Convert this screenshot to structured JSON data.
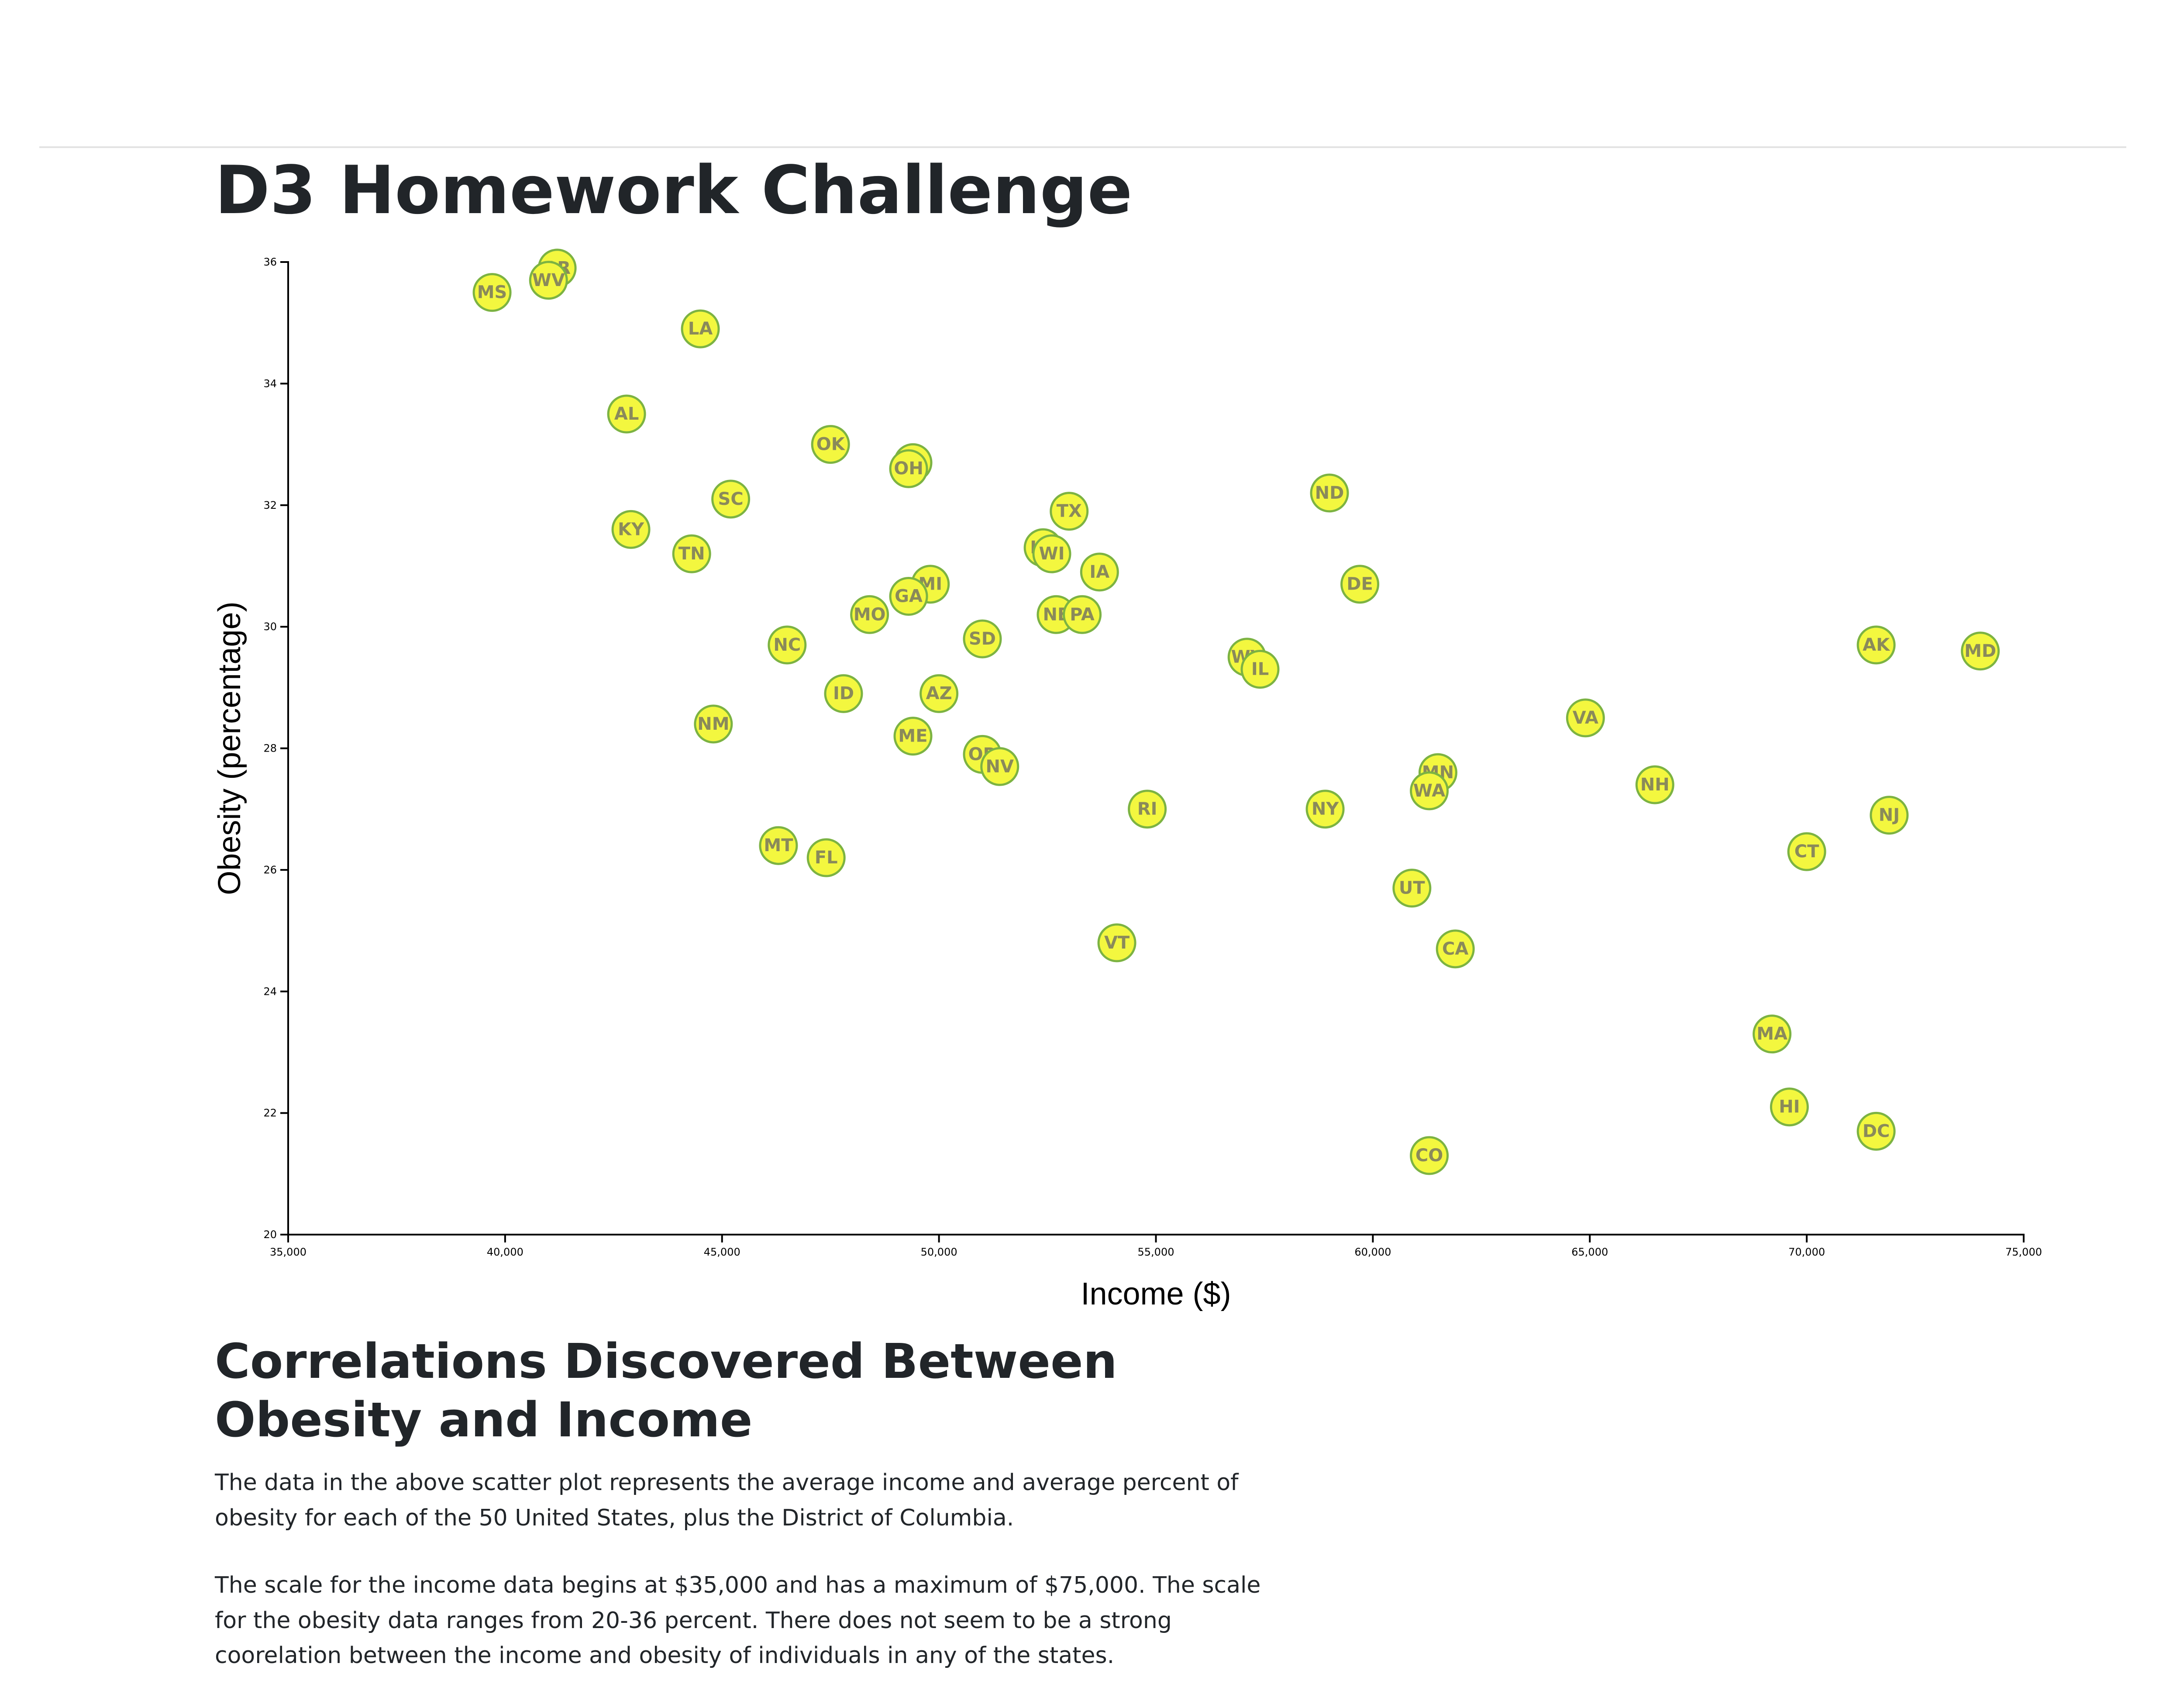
{
  "page": {
    "title": "D3 Homework Challenge",
    "section_title": "Correlations Discovered Between Obesity and Income",
    "paragraphs": [
      "The data in the above scatter plot represents the average income and average percent of obesity for each of the 50 United States, plus the District of Columbia.",
      "The scale for the income data begins at $35,000 and has a maximum of $75,000. The scale for the obesity data ranges from 20-36 percent. There does not seem to be a strong coorelation between the income and obesity of individuals in any of the states."
    ]
  },
  "colors": {
    "marker_fill": "#f3f73f",
    "marker_stroke": "#7cb342",
    "label": "#8a8a5a"
  },
  "chart_data": {
    "type": "scatter",
    "title": "",
    "xlabel": "Income ($)",
    "ylabel": "Obesity (percentage)",
    "xlim": [
      35000,
      75000
    ],
    "ylim": [
      20,
      36
    ],
    "x_ticks": [
      35000,
      40000,
      45000,
      50000,
      55000,
      60000,
      65000,
      70000,
      75000
    ],
    "x_tick_labels": [
      "35,000",
      "40,000",
      "45,000",
      "50,000",
      "55,000",
      "60,000",
      "65,000",
      "70,000",
      "75,000"
    ],
    "y_ticks": [
      20,
      22,
      24,
      26,
      28,
      30,
      32,
      34,
      36
    ],
    "y_tick_labels": [
      "20",
      "22",
      "24",
      "26",
      "28",
      "30",
      "32",
      "34",
      "36"
    ],
    "grid": false,
    "points": [
      {
        "label": "AR",
        "x": 41200,
        "y": 35.9
      },
      {
        "label": "WV",
        "x": 41000,
        "y": 35.7
      },
      {
        "label": "MS",
        "x": 39700,
        "y": 35.5
      },
      {
        "label": "LA",
        "x": 44500,
        "y": 34.9
      },
      {
        "label": "AL",
        "x": 42800,
        "y": 33.5
      },
      {
        "label": "OK",
        "x": 47500,
        "y": 33.0
      },
      {
        "label": "IN",
        "x": 49400,
        "y": 32.7
      },
      {
        "label": "OH",
        "x": 49300,
        "y": 32.6
      },
      {
        "label": "SC",
        "x": 45200,
        "y": 32.1
      },
      {
        "label": "ND",
        "x": 59000,
        "y": 32.2
      },
      {
        "label": "TX",
        "x": 53000,
        "y": 31.9
      },
      {
        "label": "KY",
        "x": 42900,
        "y": 31.6
      },
      {
        "label": "KS",
        "x": 52400,
        "y": 31.3
      },
      {
        "label": "WI",
        "x": 52600,
        "y": 31.2
      },
      {
        "label": "TN",
        "x": 44300,
        "y": 31.2
      },
      {
        "label": "IA",
        "x": 53700,
        "y": 30.9
      },
      {
        "label": "DE",
        "x": 59700,
        "y": 30.7
      },
      {
        "label": "MI",
        "x": 49800,
        "y": 30.7
      },
      {
        "label": "GA",
        "x": 49300,
        "y": 30.5
      },
      {
        "label": "MO",
        "x": 48400,
        "y": 30.2
      },
      {
        "label": "NE",
        "x": 52700,
        "y": 30.2
      },
      {
        "label": "PA",
        "x": 53300,
        "y": 30.2
      },
      {
        "label": "SD",
        "x": 51000,
        "y": 29.8
      },
      {
        "label": "NC",
        "x": 46500,
        "y": 29.7
      },
      {
        "label": "AK",
        "x": 71600,
        "y": 29.7
      },
      {
        "label": "MD",
        "x": 74000,
        "y": 29.6
      },
      {
        "label": "WY",
        "x": 57100,
        "y": 29.5
      },
      {
        "label": "IL",
        "x": 57400,
        "y": 29.3
      },
      {
        "label": "ID",
        "x": 47800,
        "y": 28.9
      },
      {
        "label": "AZ",
        "x": 50000,
        "y": 28.9
      },
      {
        "label": "VA",
        "x": 64900,
        "y": 28.5
      },
      {
        "label": "NM",
        "x": 44800,
        "y": 28.4
      },
      {
        "label": "ME",
        "x": 49400,
        "y": 28.2
      },
      {
        "label": "OR",
        "x": 51000,
        "y": 27.9
      },
      {
        "label": "NV",
        "x": 51400,
        "y": 27.7
      },
      {
        "label": "MN",
        "x": 61500,
        "y": 27.6
      },
      {
        "label": "NH",
        "x": 66500,
        "y": 27.4
      },
      {
        "label": "WA",
        "x": 61300,
        "y": 27.3
      },
      {
        "label": "RI",
        "x": 54800,
        "y": 27.0
      },
      {
        "label": "NY",
        "x": 58900,
        "y": 27.0
      },
      {
        "label": "NJ",
        "x": 71900,
        "y": 26.9
      },
      {
        "label": "MT",
        "x": 46300,
        "y": 26.4
      },
      {
        "label": "FL",
        "x": 47400,
        "y": 26.2
      },
      {
        "label": "CT",
        "x": 70000,
        "y": 26.3
      },
      {
        "label": "UT",
        "x": 60900,
        "y": 25.7
      },
      {
        "label": "VT",
        "x": 54100,
        "y": 24.8
      },
      {
        "label": "CA",
        "x": 61900,
        "y": 24.7
      },
      {
        "label": "MA",
        "x": 69200,
        "y": 23.3
      },
      {
        "label": "HI",
        "x": 69600,
        "y": 22.1
      },
      {
        "label": "DC",
        "x": 71600,
        "y": 21.7
      },
      {
        "label": "CO",
        "x": 61300,
        "y": 21.3
      }
    ]
  }
}
